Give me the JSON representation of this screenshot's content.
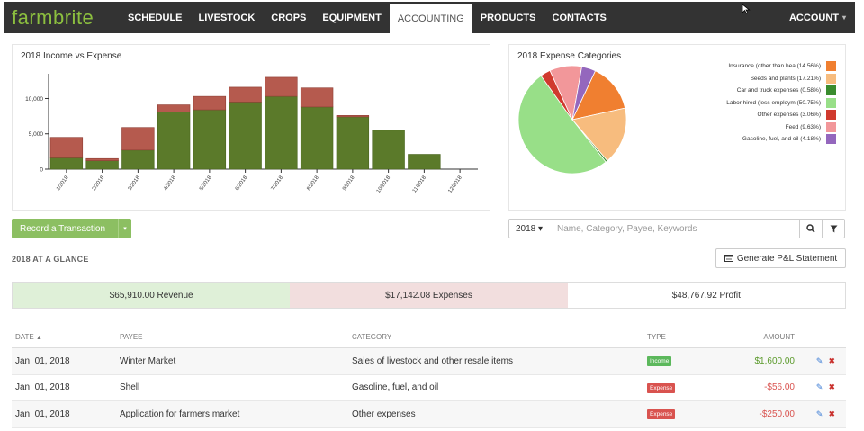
{
  "nav": {
    "logo": "farmbrite",
    "items": [
      {
        "label": "SCHEDULE",
        "active": false
      },
      {
        "label": "LIVESTOCK",
        "active": false
      },
      {
        "label": "CROPS",
        "active": false
      },
      {
        "label": "EQUIPMENT",
        "active": false
      },
      {
        "label": "ACCOUNTING",
        "active": true
      },
      {
        "label": "PRODUCTS",
        "active": false
      },
      {
        "label": "CONTACTS",
        "active": false
      }
    ],
    "account": "ACCOUNT",
    "caret": "▾"
  },
  "chart_data": [
    {
      "type": "bar",
      "title": "2018 Income vs Expense",
      "categories": [
        "1/2018",
        "2/2018",
        "3/2018",
        "4/2018",
        "5/2018",
        "6/2018",
        "7/2018",
        "8/2018",
        "9/2018",
        "10/2018",
        "11/2018",
        "12/2018"
      ],
      "series": [
        {
          "name": "Income",
          "values": [
            1600,
            1200,
            2700,
            8100,
            8400,
            9500,
            10300,
            8800,
            7400,
            5500,
            2100,
            0
          ],
          "color": "#5b7a2a"
        },
        {
          "name": "Expense",
          "values": [
            2900,
            300,
            3200,
            1000,
            1900,
            2100,
            2700,
            2700,
            200,
            0,
            0,
            0
          ],
          "color": "#b55a4e"
        }
      ],
      "stacked": true,
      "yticks": [
        "0",
        "5,000",
        "10,000"
      ],
      "ylim": [
        0,
        13500
      ],
      "grid": false
    },
    {
      "type": "pie",
      "title": "2018 Expense Categories",
      "legend_position": "right",
      "slices": [
        {
          "label": "Insurance (other than hea (14.56%)",
          "value": 14.56,
          "color": "#f07f30"
        },
        {
          "label": "Seeds and plants (17.21%)",
          "value": 17.21,
          "color": "#f7bc7e"
        },
        {
          "label": "Car and truck expenses (0.58%)",
          "value": 0.58,
          "color": "#3a8c2e"
        },
        {
          "label": "Labor hired (less employm (50.75%)",
          "value": 50.75,
          "color": "#98df88"
        },
        {
          "label": "Other expenses (3.06%)",
          "value": 3.06,
          "color": "#d03a2e"
        },
        {
          "label": "Feed (9.63%)",
          "value": 9.63,
          "color": "#f2979a"
        },
        {
          "label": "Gasoline, fuel, and oil (4.18%)",
          "value": 4.18,
          "color": "#9467bd"
        }
      ]
    }
  ],
  "toolbar": {
    "record_label": "Record a Transaction",
    "record_caret": "▾",
    "year": "2018 ▾",
    "search_placeholder": "Name, Category, Payee, Keywords",
    "search_icon": "magnifier",
    "filter_icon": "funnel"
  },
  "glance": {
    "title": "2018 AT A GLANCE",
    "pl_button": "Generate P&L Statement",
    "revenue": "$65,910.00 Revenue",
    "expenses": "$17,142.08 Expenses",
    "profit": "$48,767.92 Profit"
  },
  "table": {
    "headers": {
      "date": "DATE",
      "payee": "PAYEE",
      "category": "CATEGORY",
      "type": "TYPE",
      "amount": "AMOUNT"
    },
    "sort_indicator": "▲",
    "rows": [
      {
        "date": "Jan. 01, 2018",
        "payee": "Winter Market",
        "category": "Sales of livestock and other resale items",
        "type": "Income",
        "type_color": "#5cb85c",
        "amount": "$1,600.00",
        "amount_kind": "inc"
      },
      {
        "date": "Jan. 01, 2018",
        "payee": "Shell",
        "category": "Gasoline, fuel, and oil",
        "type": "Expense",
        "type_color": "#d9534f",
        "amount": "-$56.00",
        "amount_kind": "exp"
      },
      {
        "date": "Jan. 01, 2018",
        "payee": "Application for farmers market",
        "category": "Other expenses",
        "type": "Expense",
        "type_color": "#d9534f",
        "amount": "-$250.00",
        "amount_kind": "exp"
      }
    ]
  }
}
